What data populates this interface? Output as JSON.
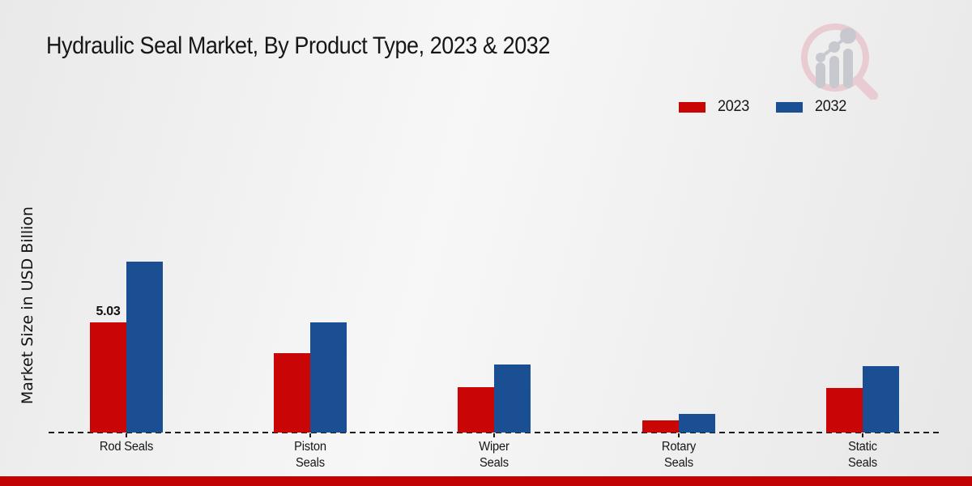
{
  "chart_data": {
    "type": "bar",
    "title": "Hydraulic Seal Market, By Product Type, 2023 & 2032",
    "xlabel": "",
    "ylabel": "Market Size in USD Billion",
    "categories": [
      "Rod Seals",
      "Piston\nSeals",
      "Wiper\nSeals",
      "Rotary\nSeals",
      "Static\nSeals"
    ],
    "series": [
      {
        "name": "2023",
        "color": "#c90505",
        "values": [
          5.03,
          3.6,
          2.05,
          0.55,
          2.03
        ]
      },
      {
        "name": "2032",
        "color": "#1b4f94",
        "values": [
          7.78,
          5.0,
          3.1,
          0.85,
          3.02
        ]
      }
    ],
    "data_labels": [
      {
        "category_index": 0,
        "series_index": 0,
        "text": "5.03"
      }
    ],
    "ylim": [
      0,
      8
    ],
    "grid": false,
    "legend_position": "top-right",
    "axis_line_style": "dashed"
  },
  "colors": {
    "series_2023": "#c90505",
    "series_2032": "#1b4f94",
    "footer_bar": "#c00404",
    "logo_pink": "#e9ccd1",
    "logo_gray": "#c7c9cf"
  }
}
